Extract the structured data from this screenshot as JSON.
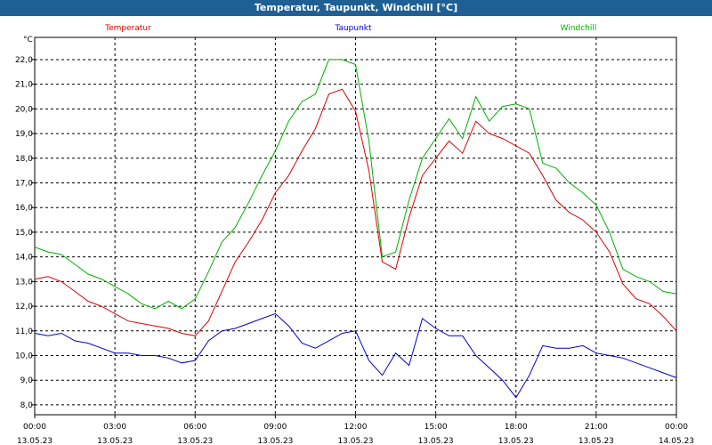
{
  "window": {
    "title": "Temperatur, Taupunkt, Windchill [°C]"
  },
  "chart_data": {
    "type": "line",
    "ylabel": "°C",
    "ylim": [
      7.6,
      22.9
    ],
    "xlim": [
      0,
      24
    ],
    "y_ticks": [
      "8,0",
      "9,0",
      "10,0",
      "11,0",
      "12,0",
      "13,0",
      "14,0",
      "15,0",
      "16,0",
      "17,0",
      "18,0",
      "19,0",
      "20,0",
      "21,0",
      "22,0"
    ],
    "x_ticks": [
      {
        "time": "00:00",
        "date": "13.05.23"
      },
      {
        "time": "03:00",
        "date": "13.05.23"
      },
      {
        "time": "06:00",
        "date": "13.05.23"
      },
      {
        "time": "09:00",
        "date": "13.05.23"
      },
      {
        "time": "12:00",
        "date": "13.05.23"
      },
      {
        "time": "15:00",
        "date": "13.05.23"
      },
      {
        "time": "18:00",
        "date": "13.05.23"
      },
      {
        "time": "21:00",
        "date": "13.05.23"
      },
      {
        "time": "00:00",
        "date": "14.05.23"
      }
    ],
    "grid": true,
    "legend_position": "top",
    "series": [
      {
        "name": "Temperatur",
        "color": "#dd0000",
        "x": [
          0,
          0.5,
          1,
          1.5,
          2,
          2.5,
          3,
          3.5,
          4,
          4.5,
          5,
          5.5,
          6,
          6.5,
          7,
          7.5,
          8,
          8.5,
          9,
          9.5,
          10,
          10.5,
          11,
          11.5,
          12,
          12.5,
          13,
          13.5,
          14,
          14.5,
          15,
          15.5,
          16,
          16.5,
          17,
          17.5,
          18,
          18.5,
          19,
          19.5,
          20,
          20.5,
          21,
          21.5,
          22,
          22.5,
          23,
          23.5,
          24
        ],
        "values": [
          13.1,
          13.2,
          13.0,
          12.6,
          12.2,
          12.0,
          11.7,
          11.4,
          11.3,
          11.2,
          11.1,
          10.9,
          10.8,
          11.4,
          12.6,
          13.8,
          14.6,
          15.5,
          16.6,
          17.3,
          18.3,
          19.2,
          20.6,
          20.8,
          19.9,
          17.5,
          13.8,
          13.5,
          15.6,
          17.3,
          18.0,
          18.7,
          18.2,
          19.5,
          19.0,
          18.8,
          18.5,
          18.2,
          17.3,
          16.3,
          15.8,
          15.5,
          15.0,
          14.2,
          12.9,
          12.3,
          12.1,
          11.6,
          11.0
        ]
      },
      {
        "name": "Taupunkt",
        "color": "#0000cc",
        "x": [
          0,
          0.5,
          1,
          1.5,
          2,
          2.5,
          3,
          3.5,
          4,
          4.5,
          5,
          5.5,
          6,
          6.5,
          7,
          7.5,
          8,
          8.5,
          9,
          9.5,
          10,
          10.5,
          11,
          11.5,
          12,
          12.5,
          13,
          13.5,
          14,
          14.5,
          15,
          15.5,
          16,
          16.5,
          17,
          17.5,
          18,
          18.5,
          19,
          19.5,
          20,
          20.5,
          21,
          21.5,
          22,
          22.5,
          23,
          23.5,
          24
        ],
        "values": [
          10.9,
          10.8,
          10.9,
          10.6,
          10.5,
          10.3,
          10.1,
          10.1,
          10.0,
          10.0,
          9.9,
          9.7,
          9.8,
          10.6,
          11.0,
          11.1,
          11.3,
          11.5,
          11.7,
          11.2,
          10.5,
          10.3,
          10.6,
          10.9,
          11.0,
          9.8,
          9.2,
          10.1,
          9.6,
          11.5,
          11.1,
          10.8,
          10.8,
          10.0,
          9.5,
          9.0,
          8.3,
          9.2,
          10.4,
          10.3,
          10.3,
          10.4,
          10.1,
          10.0,
          9.9,
          9.7,
          9.5,
          9.3,
          9.1
        ]
      },
      {
        "name": "Windchill",
        "color": "#00b000",
        "x": [
          0,
          0.5,
          1,
          1.5,
          2,
          2.5,
          3,
          3.5,
          4,
          4.5,
          5,
          5.5,
          6,
          6.5,
          7,
          7.5,
          8,
          8.5,
          9,
          9.5,
          10,
          10.5,
          11,
          11.5,
          12,
          12.5,
          13,
          13.5,
          14,
          14.5,
          15,
          15.5,
          16,
          16.5,
          17,
          17.5,
          18,
          18.5,
          19,
          19.5,
          20,
          20.5,
          21,
          21.5,
          22,
          22.5,
          23,
          23.5,
          24
        ],
        "values": [
          14.4,
          14.2,
          14.1,
          13.7,
          13.3,
          13.1,
          12.8,
          12.5,
          12.1,
          11.9,
          12.2,
          11.9,
          12.3,
          13.4,
          14.6,
          15.2,
          16.2,
          17.3,
          18.3,
          19.5,
          20.3,
          20.6,
          22.0,
          22.0,
          21.8,
          18.7,
          14.0,
          14.2,
          16.3,
          18.0,
          18.8,
          19.6,
          18.8,
          20.5,
          19.5,
          20.1,
          20.2,
          20.0,
          17.8,
          17.6,
          17.0,
          16.6,
          16.1,
          15.0,
          13.5,
          13.2,
          13.0,
          12.6,
          12.5
        ]
      }
    ]
  }
}
